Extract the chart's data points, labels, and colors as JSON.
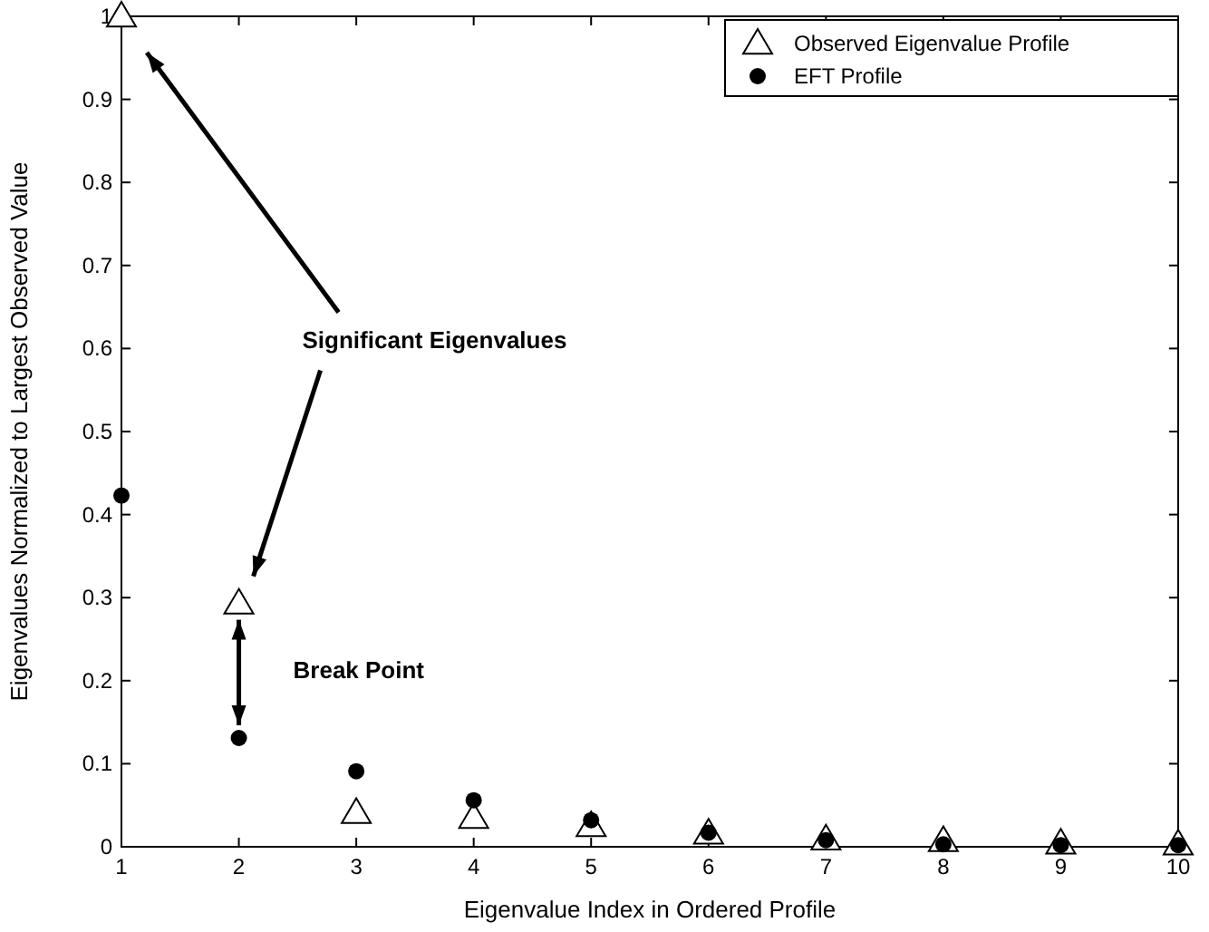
{
  "chart_data": {
    "type": "scatter",
    "xlabel": "Eigenvalue Index in Ordered Profile",
    "ylabel": "Eigenvalues Normalized to Largest Observed Value",
    "x": [
      1,
      2,
      3,
      4,
      5,
      6,
      7,
      8,
      9,
      10
    ],
    "series": [
      {
        "name": "Observed Eigenvalue Profile",
        "color": "#000000",
        "marker": "triangle",
        "values": [
          1,
          0.293,
          0.041,
          0.035,
          0.025,
          0.016,
          0.009,
          0.007,
          0.004,
          0.003
        ]
      },
      {
        "name": "EFT Profile",
        "color": "#000000",
        "marker": "circle",
        "values": [
          0.423,
          0.131,
          0.091,
          0.056,
          0.032,
          0.017,
          0.008,
          0.003,
          0.002,
          0.002
        ]
      }
    ],
    "xlim": [
      1,
      10
    ],
    "ylim": [
      0,
      1
    ],
    "xticks": [
      1,
      2,
      3,
      4,
      5,
      6,
      7,
      8,
      9,
      10
    ],
    "yticks": [
      0,
      0.1,
      0.2,
      0.3,
      0.4,
      0.5,
      0.6,
      0.7,
      0.8,
      0.9,
      1
    ],
    "grid": false,
    "legend": "top right",
    "annotations": [
      "Significant Eigenvalues",
      "Break Point"
    ]
  }
}
